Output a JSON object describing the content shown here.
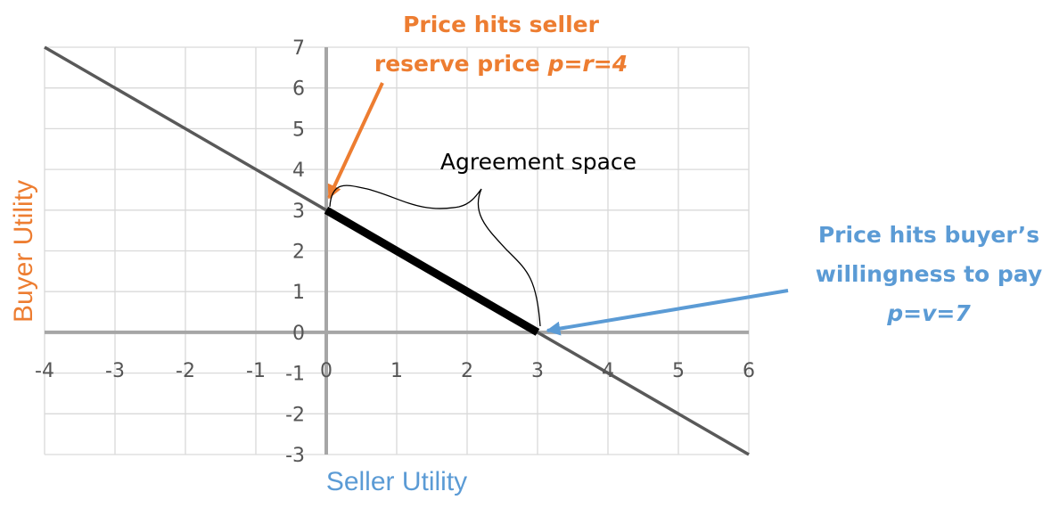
{
  "chart_data": {
    "type": "line",
    "xlabel": "Seller Utility",
    "ylabel": "Buyer Utility",
    "xlim": [
      -4,
      6
    ],
    "ylim": [
      -3,
      7
    ],
    "x_ticks": [
      -4,
      -3,
      -2,
      -1,
      0,
      1,
      2,
      3,
      4,
      5,
      6
    ],
    "y_ticks": [
      -3,
      -2,
      -1,
      0,
      1,
      2,
      3,
      4,
      5,
      6,
      7
    ],
    "grid": true,
    "series": [
      {
        "x": [
          -4,
          6
        ],
        "y": [
          7,
          -3
        ],
        "color": "#595959"
      },
      {
        "x": [
          0,
          3
        ],
        "y": [
          3,
          0
        ],
        "color": "#000000"
      }
    ],
    "annotations": {
      "seller": {
        "lines": [
          "Price hits seller",
          "reserve price "
        ],
        "formula": "p=r=4",
        "point": [
          0,
          3
        ],
        "color": "#ED7D31"
      },
      "buyer": {
        "lines": [
          "Price hits buyer’s",
          "willingness to pay"
        ],
        "formula": "p=v=7",
        "point": [
          3,
          0
        ],
        "color": "#5B9BD5"
      },
      "agreement": {
        "text": "Agreement space"
      }
    },
    "colors": {
      "grid": "#d9d9d9",
      "axis": "#a6a6a6",
      "xlabel": "#5B9BD5",
      "ylabel": "#ED7D31"
    }
  }
}
